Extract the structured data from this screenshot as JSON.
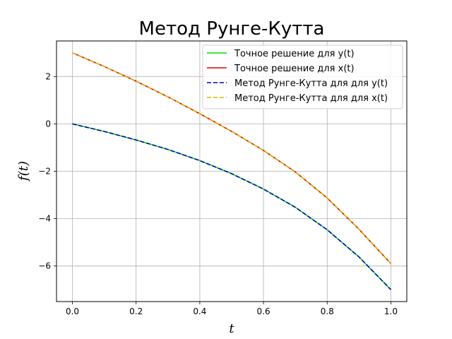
{
  "chart_data": {
    "type": "line",
    "title": "Метод Рунге-Кутта",
    "xlabel": "t",
    "ylabel": "f(t)",
    "xlim": [
      -0.05,
      1.05
    ],
    "ylim": [
      -7.5,
      3.5
    ],
    "xticks": [
      0.0,
      0.2,
      0.4,
      0.6,
      0.8,
      1.0
    ],
    "xtick_labels": [
      "0.0",
      "0.2",
      "0.4",
      "0.6",
      "0.8",
      "1.0"
    ],
    "yticks": [
      2,
      0,
      -2,
      -4,
      -6
    ],
    "ytick_labels": [
      "2",
      "0",
      "−2",
      "−4",
      "−6"
    ],
    "grid": true,
    "legend_position": "top-right",
    "x": [
      0.0,
      0.1,
      0.2,
      0.3,
      0.4,
      0.5,
      0.6,
      0.7,
      0.8,
      0.9,
      1.0
    ],
    "series": [
      {
        "name": "Точное решение для y(t)",
        "color": "#00e000",
        "style": "solid",
        "values": [
          0.0,
          -0.32,
          -0.68,
          -1.08,
          -1.55,
          -2.1,
          -2.75,
          -3.52,
          -4.47,
          -5.62,
          -7.0
        ]
      },
      {
        "name": "Точное решение для x(t)",
        "color": "#e00000",
        "style": "solid",
        "values": [
          3.0,
          2.42,
          1.8,
          1.14,
          0.43,
          -0.32,
          -1.12,
          -2.03,
          -3.13,
          -4.45,
          -5.9
        ]
      },
      {
        "name": "Метод Рунге-Кутта для для y(t)",
        "color": "#0000c0",
        "style": "dashed",
        "values": [
          0.0,
          -0.32,
          -0.68,
          -1.08,
          -1.55,
          -2.1,
          -2.75,
          -3.52,
          -4.47,
          -5.62,
          -7.0
        ]
      },
      {
        "name": "Метод Рунге-Кутта для для x(t)",
        "color": "#d4b800",
        "style": "dashed",
        "values": [
          3.0,
          2.42,
          1.8,
          1.14,
          0.43,
          -0.32,
          -1.12,
          -2.03,
          -3.13,
          -4.45,
          -5.9
        ]
      }
    ]
  }
}
